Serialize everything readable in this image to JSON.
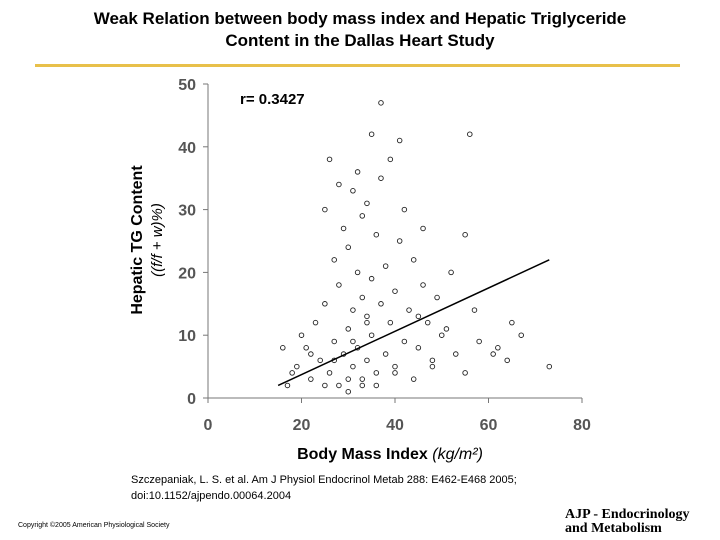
{
  "slide": {
    "title_line1": "Weak Relation between body mass index and Hepatic Triglyceride",
    "title_line2": "Content in the Dallas Heart Study",
    "rule_color": "#E8C04A",
    "citation_line1": "Szczepaniak, L. S. et al. Am J Physiol Endocrinol Metab 288: E462-E468 2005;",
    "citation_line2": "doi:10.1152/ajpendo.00064.2004",
    "copyright": "Copyright ©2005 American Physiological Society",
    "journal_line1": "AJP - Endocrinology",
    "journal_line2": "and Metabolism"
  },
  "chart_data": {
    "type": "scatter",
    "title": "",
    "annotation": "r= 0.3427",
    "xlabel": "Body Mass Index",
    "xlabel_units": "(kg/m²)",
    "ylabel": "Hepatic TG Content",
    "ylabel_units": "((f/f + w)%)",
    "xlim": [
      0,
      80
    ],
    "ylim": [
      0,
      50
    ],
    "xticks": [
      "0",
      "20",
      "40",
      "60",
      "80"
    ],
    "yticks": [
      "0",
      "10",
      "20",
      "30",
      "40",
      "50"
    ],
    "regression_line": {
      "x": [
        15,
        73
      ],
      "y": [
        2,
        22
      ]
    },
    "points": {
      "x": [
        17,
        19,
        21,
        22,
        23,
        24,
        25,
        25,
        26,
        26,
        27,
        27,
        28,
        28,
        28,
        29,
        29,
        30,
        30,
        30,
        31,
        31,
        31,
        32,
        32,
        32,
        33,
        33,
        33,
        34,
        34,
        34,
        35,
        35,
        35,
        36,
        36,
        37,
        37,
        38,
        38,
        39,
        39,
        40,
        40,
        41,
        41,
        42,
        42,
        43,
        44,
        45,
        46,
        47,
        48,
        49,
        50,
        52,
        53,
        55,
        56,
        57,
        62,
        64,
        67,
        73,
        37,
        46,
        55,
        25,
        30,
        33,
        36,
        40,
        44,
        48,
        34,
        31,
        27,
        22,
        20,
        18,
        16,
        45,
        51,
        58,
        61,
        65
      ],
      "y": [
        2,
        5,
        8,
        3,
        12,
        6,
        30,
        15,
        4,
        38,
        9,
        22,
        2,
        18,
        34,
        7,
        27,
        3,
        11,
        24,
        14,
        33,
        5,
        8,
        20,
        36,
        2,
        16,
        29,
        6,
        12,
        31,
        10,
        19,
        42,
        4,
        26,
        15,
        35,
        7,
        21,
        12,
        38,
        5,
        17,
        25,
        41,
        9,
        30,
        14,
        22,
        8,
        18,
        12,
        6,
        16,
        10,
        20,
        7,
        4,
        42,
        14,
        8,
        6,
        10,
        5,
        47,
        27,
        26,
        2,
        1,
        3,
        2,
        4,
        3,
        5,
        13,
        9,
        6,
        7,
        10,
        4,
        8,
        13,
        11,
        9,
        7,
        12
      ]
    }
  }
}
